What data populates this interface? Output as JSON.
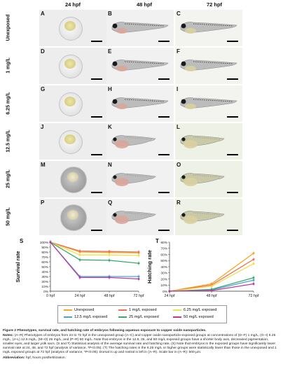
{
  "figure": {
    "columns": [
      "24 hpf",
      "48 hpf",
      "72 hpf"
    ],
    "rows": [
      "Unexposed",
      "1 mg/L",
      "6.25 mg/L",
      "12.5 mg/L",
      "25 mg/L",
      "50 mg/L"
    ],
    "panel_letters": [
      "A",
      "B",
      "C",
      "D",
      "E",
      "F",
      "G",
      "H",
      "I",
      "J",
      "K",
      "L",
      "M",
      "N",
      "O",
      "P",
      "Q",
      "R"
    ]
  },
  "charts": {
    "survival": {
      "letter": "S",
      "chart_data": {
        "type": "line",
        "ylabel": "Survival rate",
        "x": [
          "0 hpf",
          "24 hpf",
          "48 hpf",
          "72 hpf"
        ],
        "ylim": [
          0,
          100
        ],
        "yticks": [
          "0%",
          "10%",
          "20%",
          "30%",
          "40%",
          "50%",
          "60%",
          "70%",
          "80%",
          "90%",
          "100%"
        ],
        "series": [
          {
            "name": "Unexposed",
            "color": "#f5a623",
            "values": [
              100,
              80,
              79,
              78
            ]
          },
          {
            "name": "1 mg/L exposed",
            "color": "#e8735a",
            "values": [
              100,
              82,
              81,
              80
            ]
          },
          {
            "name": "6.25 mg/L exposed",
            "color": "#f2e04a",
            "values": [
              100,
              74,
              74,
              73
            ]
          },
          {
            "name": "12.5 mg/L exposed",
            "color": "#4aa3d8",
            "values": [
              100,
              30,
              30,
              30
            ]
          },
          {
            "name": "25 mg/L exposed",
            "color": "#3aaa6a",
            "values": [
              100,
              64,
              63,
              57
            ]
          },
          {
            "name": "50 mg/L exposed",
            "color": "#c0399a",
            "values": [
              100,
              28,
              28,
              25
            ]
          }
        ]
      }
    },
    "hatching": {
      "letter": "T",
      "chart_data": {
        "type": "line",
        "ylabel": "Hatching rate",
        "x": [
          "24 hpf",
          "48 hpf",
          "72 hpf"
        ],
        "ylim": [
          0,
          80
        ],
        "yticks": [
          "0%",
          "10%",
          "20%",
          "30%",
          "40%",
          "50%",
          "60%",
          "70%",
          "80%"
        ],
        "series": [
          {
            "name": "Unexposed",
            "color": "#f5a623",
            "values": [
              0,
              12,
              62
            ]
          },
          {
            "name": "1 mg/L exposed",
            "color": "#e8735a",
            "values": [
              0,
              10,
              52
            ]
          },
          {
            "name": "6.25 mg/L exposed",
            "color": "#f2e04a",
            "values": [
              0,
              8,
              45
            ]
          },
          {
            "name": "12.5 mg/L exposed",
            "color": "#4aa3d8",
            "values": [
              0,
              2,
              18
            ]
          },
          {
            "name": "25 mg/L exposed",
            "color": "#3aaa6a",
            "values": [
              0,
              3,
              22
            ]
          },
          {
            "name": "50 mg/L exposed",
            "color": "#c0399a",
            "values": [
              0,
              1,
              12
            ]
          }
        ]
      }
    }
  },
  "legend": [
    "Unexposed",
    "1 mg/L exposed",
    "6.25 mg/L exposed",
    "12.5 mg/L exposed",
    "25 mg/L exposed",
    "50 mg/L exposed"
  ],
  "caption": {
    "title": "Figure 2 Phenotypes, survival rate, and hatching rate of embryos following aqueous exposure to copper oxide nanoparticles.",
    "notes_label": "Notes:",
    "notes": "(A–R) Phenotypes of embryos from 24 to 72 hpf in the unexposed group (A–C) and copper oxide nanoparticle-exposed groups at concentrations of (D–F) 1 mg/L, (G–I) 6.25 mg/L, (J–L) 12.5 mg/L, (M–O) 25 mg/L, and (P–R) 50 mg/L. Note that embryos in the 12.5, 25, and 50 mg/L exposed groups have a shorter body axis, decreased pigmentation, smaller eyes, and larger yolk sacs. (S and T) Statistical analysis of the average survival rate and hatching rate. (S) Note that embryos in the exposed groups have significantly lower survival rate at 24, 48, and 72 hpf (analysis of variance, *P<0.05). (T) The hatching rates in the 6.25 mg/L or higher groups were statistically lower than those in the unexposed and 1 mg/L exposed groups at 72 hpf (analysis of variance, *P<0.05). Dorsal is up and rostral is left in (A–R). Scale bar in (A–R): 500 μm.",
    "abbr_label": "Abbreviation:",
    "abbr": "hpf, hours postfertilization."
  }
}
